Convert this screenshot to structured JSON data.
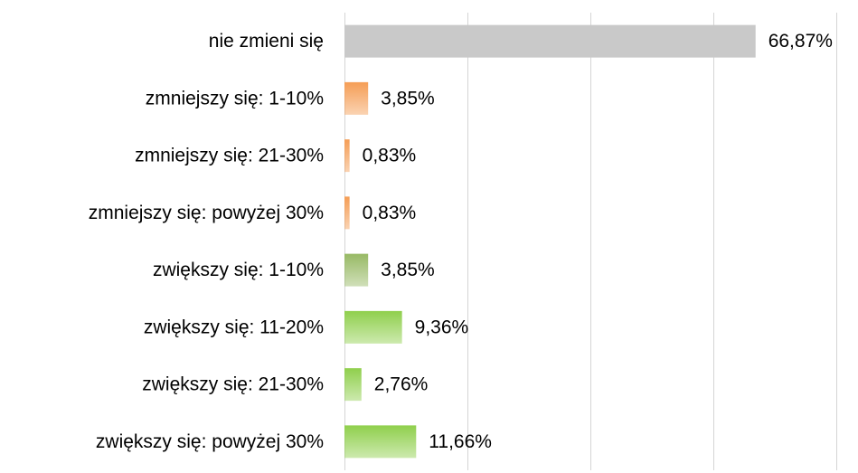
{
  "chart_data": {
    "type": "barh",
    "categories": [
      "nie zmieni się",
      "zmniejszy się: 1-10%",
      "zmniejszy się: 21-30%",
      "zmniejszy się: powyżej 30%",
      "zwiększy się: 1-10%",
      "zwiększy się: 11-20%",
      "zwiększy się: 21-30%",
      "zwiększy się: powyżej 30%"
    ],
    "values": [
      66.87,
      3.85,
      0.83,
      0.83,
      3.85,
      9.36,
      2.76,
      11.66
    ],
    "value_labels": [
      "66,87%",
      "3,85%",
      "0,83%",
      "0,83%",
      "3,85%",
      "9,36%",
      "2,76%",
      "11,66%"
    ],
    "colors": [
      "#c9c9c9",
      "#f59d55",
      "#f59d55",
      "#f59d55",
      "#97b964",
      "#8fcf4c",
      "#8fcf4c",
      "#8fcf4c"
    ],
    "xlim": [
      0,
      80
    ],
    "xticks": [
      0,
      20,
      40,
      60,
      80
    ],
    "grid": true
  }
}
